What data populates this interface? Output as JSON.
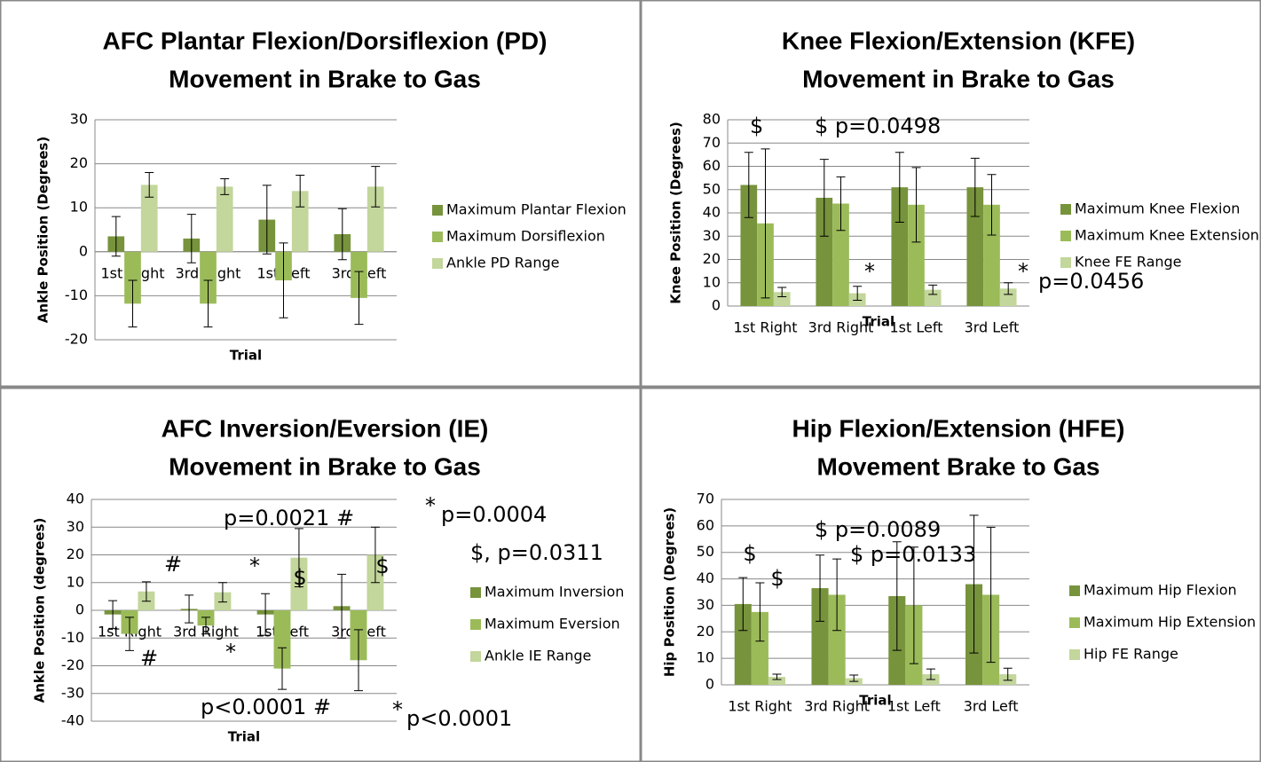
{
  "chart_data": [
    {
      "type": "bar",
      "title": "AFC Plantar Flexion/Dorsiflexion (PD)",
      "subtitle": "Movement in Brake to Gas",
      "x_label": "Trial",
      "y_label": "Ankle Position (Degrees)",
      "categories": [
        "1st Right",
        "3rd Right",
        "1st Left",
        "3rd Left"
      ],
      "series": [
        {
          "name": "Maximum Plantar Flexion",
          "color": "#77933c",
          "values": [
            3.5,
            3,
            7.3,
            4
          ],
          "errors": [
            4.5,
            5.5,
            7.8,
            5.8
          ]
        },
        {
          "name": "Maximum Dorsiflexion",
          "color": "#9bbb59",
          "values": [
            -11.8,
            -11.8,
            -6.5,
            -10.5
          ],
          "errors": [
            5.3,
            5.3,
            8.5,
            6
          ]
        },
        {
          "name": "Ankle PD Range",
          "color": "#c3d69b",
          "values": [
            15.2,
            14.8,
            13.8,
            14.8
          ],
          "errors": [
            2.8,
            1.8,
            3.6,
            4.6
          ]
        }
      ],
      "ylim": [
        -20,
        30
      ],
      "yticks": [
        -20,
        -10,
        0,
        10,
        20,
        30
      ],
      "legend": "right",
      "annotations": []
    },
    {
      "type": "bar",
      "title": "Knee Flexion/Extension (KFE)",
      "subtitle": "Movement in Brake to Gas",
      "x_label": "Trial",
      "y_label": "Knee Position (Degrees)",
      "categories": [
        "1st Right",
        "3rd Right",
        "1st Left",
        "3rd Left"
      ],
      "series": [
        {
          "name": "Maximum Knee Flexion",
          "color": "#77933c",
          "values": [
            52,
            46.5,
            51,
            51
          ],
          "errors": [
            14,
            16.5,
            15,
            12.5
          ]
        },
        {
          "name": "Maximum Knee Extension",
          "color": "#9bbb59",
          "values": [
            35.5,
            44,
            43.5,
            43.5
          ],
          "errors": [
            32,
            11.5,
            16,
            13
          ]
        },
        {
          "name": "Knee FE Range",
          "color": "#c3d69b",
          "values": [
            6,
            5.5,
            7,
            7.5
          ],
          "errors": [
            2,
            3,
            2,
            2.5
          ]
        }
      ],
      "ylim": [
        0,
        80
      ],
      "yticks": [
        0,
        10,
        20,
        30,
        40,
        50,
        60,
        70,
        80
      ],
      "legend": "right",
      "annotations": [
        "$",
        "$ p=0.0498",
        "*",
        "*",
        "p=0.0456"
      ]
    },
    {
      "type": "bar",
      "title": "AFC Inversion/Eversion (IE)",
      "subtitle": "Movement in Brake to Gas",
      "x_label": "Trial",
      "y_label": "Ankle Position (degrees)",
      "categories": [
        "1st Right",
        "3rd Right",
        "1st Left",
        "3rd Left"
      ],
      "series": [
        {
          "name": "Maximum Inversion",
          "color": "#77933c",
          "values": [
            -1.5,
            0.5,
            -1.5,
            1.5
          ],
          "errors": [
            5,
            5,
            7.5,
            11.5
          ]
        },
        {
          "name": "Maximum Eversion",
          "color": "#9bbb59",
          "values": [
            -8.5,
            -5.5,
            -21,
            -18
          ],
          "errors": [
            6,
            3,
            7.5,
            11
          ]
        },
        {
          "name": "Ankle IE Range",
          "color": "#c3d69b",
          "values": [
            6.8,
            6.5,
            19,
            20
          ],
          "errors": [
            3.5,
            3.5,
            10.5,
            10
          ]
        }
      ],
      "ylim": [
        -40,
        40
      ],
      "yticks": [
        -40,
        -30,
        -20,
        -10,
        0,
        10,
        20,
        30,
        40
      ],
      "legend": "right",
      "annotations": [
        "#",
        "#",
        "*",
        "*",
        "$",
        "$",
        "p=0.0021 #",
        "*",
        "p=0.0004",
        "$, p=0.0311",
        "p<0.0001 #",
        "*",
        "p<0.0001"
      ]
    },
    {
      "type": "bar",
      "title": "Hip Flexion/Extension (HFE)",
      "subtitle": "Movement Brake to Gas",
      "x_label": "Trial",
      "y_label": "Hip Position (Degrees)",
      "categories": [
        "1st Right",
        "3rd Right",
        "1st Left",
        "3rd Left"
      ],
      "series": [
        {
          "name": "Maximum Hip Flexion",
          "color": "#77933c",
          "values": [
            30.5,
            36.5,
            33.5,
            38
          ],
          "errors": [
            10,
            12.5,
            20.5,
            26
          ]
        },
        {
          "name": "Maximum Hip Extension",
          "color": "#9bbb59",
          "values": [
            27.5,
            34,
            30,
            34
          ],
          "errors": [
            11,
            13.5,
            22,
            25.5
          ]
        },
        {
          "name": "Hip FE Range",
          "color": "#c3d69b",
          "values": [
            3,
            2.5,
            4,
            4
          ],
          "errors": [
            1,
            1.2,
            2,
            2.3
          ]
        }
      ],
      "ylim": [
        0,
        70
      ],
      "yticks": [
        0,
        10,
        20,
        30,
        40,
        50,
        60,
        70
      ],
      "legend": "right",
      "annotations": [
        "$",
        "$",
        "$ p=0.0089",
        "$ p=0.0133"
      ]
    }
  ]
}
